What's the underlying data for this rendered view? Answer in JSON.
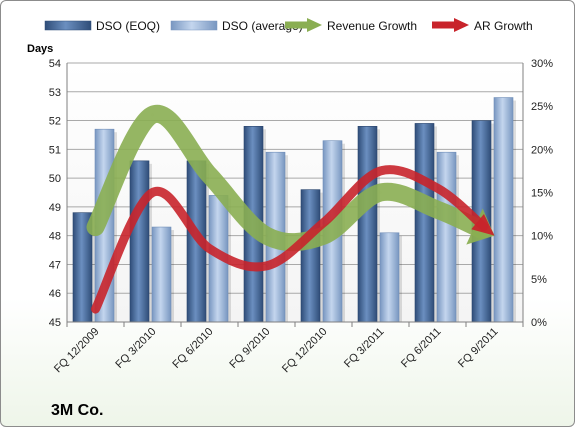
{
  "chart_data": {
    "type": "bar",
    "company": "3M Co.",
    "ylabel": "Days",
    "categories": [
      "FQ 12/2009",
      "FQ 3/2010",
      "FQ 6/2010",
      "FQ 9/2010",
      "FQ 12/2010",
      "FQ 3/2011",
      "FQ 6/2011",
      "FQ 9/2011"
    ],
    "ylim": [
      45,
      54
    ],
    "y_ticks": [
      "45",
      "46",
      "47",
      "48",
      "49",
      "50",
      "51",
      "52",
      "53",
      "54"
    ],
    "y2lim": [
      0,
      30
    ],
    "y2_ticks": [
      "0%",
      "5%",
      "10%",
      "15%",
      "20%",
      "25%",
      "30%"
    ],
    "series": [
      {
        "name": "DSO (EOQ)",
        "type": "bar",
        "values": [
          48.8,
          50.6,
          50.6,
          51.8,
          49.6,
          51.8,
          51.9,
          52.0
        ],
        "color": "#4a6c99"
      },
      {
        "name": "DSO (average)",
        "type": "bar",
        "values": [
          51.7,
          48.3,
          49.4,
          50.9,
          51.3,
          48.1,
          50.9,
          52.8
        ],
        "color": "#9ab6db"
      },
      {
        "name": "Revenue Growth",
        "type": "line",
        "axis": "right",
        "values": [
          11,
          24,
          17,
          10,
          10,
          15,
          13,
          10
        ],
        "color": "#8aae52"
      },
      {
        "name": "AR Growth",
        "type": "line",
        "axis": "right",
        "values": [
          1.5,
          15,
          8.5,
          6.5,
          11.5,
          17.5,
          15.5,
          10
        ],
        "color": "#c8242b"
      }
    ],
    "grid": true,
    "legend_position": "top"
  }
}
